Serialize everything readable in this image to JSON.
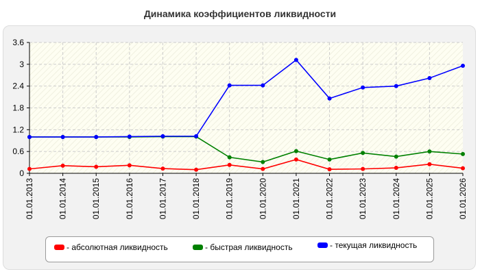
{
  "chart_data": {
    "type": "line",
    "title": "Динамика коэффициентов ликвидности",
    "categories": [
      "01.01.2013",
      "01.01.2014",
      "01.01.2015",
      "01.01.2016",
      "01.01.2017",
      "01.01.2018",
      "01.01.2019",
      "01.01.2020",
      "01.01.2021",
      "01.01.2022",
      "01.01.2023",
      "01.01.2024",
      "01.01.2025",
      "01.01.2026"
    ],
    "y_ticks": [
      "0",
      "0.6",
      "1.2",
      "1.8",
      "2.4",
      "3",
      "3.6"
    ],
    "ylim": [
      0,
      3.6
    ],
    "grid": true,
    "legend_position": "bottom",
    "series": [
      {
        "name": "- абсолютная ликвидность",
        "color": "#ff0000",
        "values": [
          0.12,
          0.21,
          0.18,
          0.22,
          0.13,
          0.1,
          0.23,
          0.12,
          0.38,
          0.11,
          0.12,
          0.15,
          0.25,
          0.14
        ]
      },
      {
        "name": "- быстрая ликвидность",
        "color": "#008000",
        "values": [
          1.0,
          1.0,
          1.0,
          1.0,
          1.01,
          1.01,
          0.44,
          0.31,
          0.61,
          0.38,
          0.56,
          0.46,
          0.6,
          0.53
        ]
      },
      {
        "name": "- текущая ликвидность",
        "color": "#0000ff",
        "values": [
          1.0,
          1.0,
          1.0,
          1.01,
          1.02,
          1.02,
          2.42,
          2.42,
          3.12,
          2.06,
          2.36,
          2.4,
          2.62,
          2.96
        ]
      }
    ]
  }
}
